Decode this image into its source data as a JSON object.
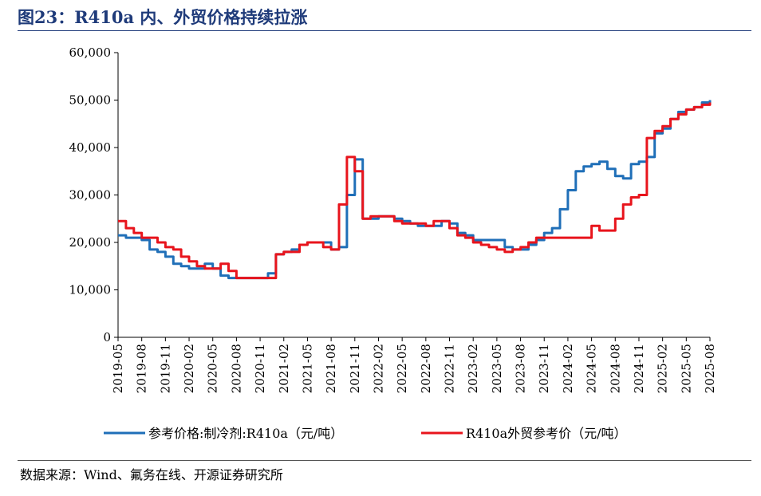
{
  "header": {
    "title": "图23：R410a 内、外贸价格持续拉涨"
  },
  "footer": {
    "source": "数据来源：Wind、氟务在线、开源证券研究所"
  },
  "chart_data": {
    "type": "line",
    "title": "图23：R410a 内、外贸价格持续拉涨",
    "ylim": [
      0,
      60000
    ],
    "yticks": [
      "0",
      "10,000",
      "20,000",
      "30,000",
      "40,000",
      "50,000",
      "60,000"
    ],
    "xticks": [
      "2019-05",
      "2019-08",
      "2019-11",
      "2020-02",
      "2020-05",
      "2020-08",
      "2020-11",
      "2021-02",
      "2021-05",
      "2021-08",
      "2021-11",
      "2022-02",
      "2022-05",
      "2022-08",
      "2022-11",
      "2023-02",
      "2023-05",
      "2023-08",
      "2023-11",
      "2024-02",
      "2024-05",
      "2024-08",
      "2024-11",
      "2025-02",
      "2025-05",
      "2025-08"
    ],
    "legend_position": "bottom",
    "grid": false,
    "series": [
      {
        "name": "参考价格:制冷剂:R410a（元/吨）",
        "color": "#1f6fb8",
        "points": [
          [
            "2019-05",
            21500
          ],
          [
            "2019-06",
            21000
          ],
          [
            "2019-08",
            20500
          ],
          [
            "2019-09",
            18500
          ],
          [
            "2019-10",
            18000
          ],
          [
            "2019-11",
            17000
          ],
          [
            "2019-12",
            15500
          ],
          [
            "2020-01",
            15000
          ],
          [
            "2020-02",
            14500
          ],
          [
            "2020-03",
            14500
          ],
          [
            "2020-04",
            15500
          ],
          [
            "2020-05",
            14500
          ],
          [
            "2020-06",
            13000
          ],
          [
            "2020-07",
            12500
          ],
          [
            "2020-08",
            12500
          ],
          [
            "2020-09",
            12500
          ],
          [
            "2020-10",
            12500
          ],
          [
            "2020-11",
            12500
          ],
          [
            "2020-12",
            13500
          ],
          [
            "2021-01",
            17500
          ],
          [
            "2021-02",
            18000
          ],
          [
            "2021-03",
            18500
          ],
          [
            "2021-04",
            19500
          ],
          [
            "2021-05",
            20000
          ],
          [
            "2021-06",
            20000
          ],
          [
            "2021-07",
            20000
          ],
          [
            "2021-08",
            18500
          ],
          [
            "2021-09",
            19000
          ],
          [
            "2021-10",
            30000
          ],
          [
            "2021-11",
            37500
          ],
          [
            "2021-12",
            25000
          ],
          [
            "2022-01",
            25000
          ],
          [
            "2022-02",
            25500
          ],
          [
            "2022-03",
            25500
          ],
          [
            "2022-04",
            25000
          ],
          [
            "2022-05",
            24500
          ],
          [
            "2022-06",
            24000
          ],
          [
            "2022-07",
            23500
          ],
          [
            "2022-08",
            23500
          ],
          [
            "2022-09",
            23500
          ],
          [
            "2022-10",
            24500
          ],
          [
            "2022-11",
            24000
          ],
          [
            "2022-12",
            22000
          ],
          [
            "2023-01",
            21500
          ],
          [
            "2023-02",
            20500
          ],
          [
            "2023-03",
            20500
          ],
          [
            "2023-04",
            20500
          ],
          [
            "2023-05",
            20500
          ],
          [
            "2023-06",
            19000
          ],
          [
            "2023-07",
            18500
          ],
          [
            "2023-08",
            18500
          ],
          [
            "2023-09",
            19500
          ],
          [
            "2023-10",
            20500
          ],
          [
            "2023-11",
            22000
          ],
          [
            "2023-12",
            23000
          ],
          [
            "2024-01",
            27000
          ],
          [
            "2024-02",
            31000
          ],
          [
            "2024-03",
            35000
          ],
          [
            "2024-04",
            36000
          ],
          [
            "2024-05",
            36500
          ],
          [
            "2024-06",
            37000
          ],
          [
            "2024-07",
            35500
          ],
          [
            "2024-08",
            34000
          ],
          [
            "2024-09",
            33500
          ],
          [
            "2024-10",
            36500
          ],
          [
            "2024-11",
            37000
          ],
          [
            "2024-12",
            38000
          ],
          [
            "2025-01",
            43000
          ],
          [
            "2025-02",
            44000
          ],
          [
            "2025-03",
            46000
          ],
          [
            "2025-04",
            47500
          ],
          [
            "2025-05",
            48000
          ],
          [
            "2025-06",
            48500
          ],
          [
            "2025-07",
            49500
          ],
          [
            "2025-08",
            50000
          ]
        ]
      },
      {
        "name": "R410a外贸参考价（元/吨）",
        "color": "#e8141c",
        "points": [
          [
            "2019-05",
            24500
          ],
          [
            "2019-06",
            23000
          ],
          [
            "2019-07",
            22000
          ],
          [
            "2019-08",
            21000
          ],
          [
            "2019-09",
            21000
          ],
          [
            "2019-10",
            20000
          ],
          [
            "2019-11",
            19000
          ],
          [
            "2019-12",
            18500
          ],
          [
            "2020-01",
            17000
          ],
          [
            "2020-02",
            16000
          ],
          [
            "2020-03",
            15000
          ],
          [
            "2020-04",
            14500
          ],
          [
            "2020-05",
            14500
          ],
          [
            "2020-06",
            15500
          ],
          [
            "2020-07",
            14000
          ],
          [
            "2020-08",
            12500
          ],
          [
            "2020-09",
            12500
          ],
          [
            "2020-10",
            12500
          ],
          [
            "2020-11",
            12500
          ],
          [
            "2020-12",
            12500
          ],
          [
            "2021-01",
            17500
          ],
          [
            "2021-02",
            18000
          ],
          [
            "2021-03",
            18000
          ],
          [
            "2021-04",
            19500
          ],
          [
            "2021-05",
            20000
          ],
          [
            "2021-06",
            20000
          ],
          [
            "2021-07",
            19000
          ],
          [
            "2021-08",
            18500
          ],
          [
            "2021-09",
            28000
          ],
          [
            "2021-10",
            38000
          ],
          [
            "2021-11",
            35000
          ],
          [
            "2021-12",
            25000
          ],
          [
            "2022-01",
            25500
          ],
          [
            "2022-02",
            25500
          ],
          [
            "2022-03",
            25500
          ],
          [
            "2022-04",
            24500
          ],
          [
            "2022-05",
            24000
          ],
          [
            "2022-06",
            24000
          ],
          [
            "2022-07",
            24000
          ],
          [
            "2022-08",
            23500
          ],
          [
            "2022-09",
            24500
          ],
          [
            "2022-10",
            24500
          ],
          [
            "2022-11",
            23000
          ],
          [
            "2022-12",
            21500
          ],
          [
            "2023-01",
            21000
          ],
          [
            "2023-02",
            20000
          ],
          [
            "2023-03",
            19500
          ],
          [
            "2023-04",
            19000
          ],
          [
            "2023-05",
            18500
          ],
          [
            "2023-06",
            18000
          ],
          [
            "2023-07",
            18500
          ],
          [
            "2023-08",
            19000
          ],
          [
            "2023-09",
            20000
          ],
          [
            "2023-10",
            21000
          ],
          [
            "2023-11",
            21000
          ],
          [
            "2023-12",
            21000
          ],
          [
            "2024-01",
            21000
          ],
          [
            "2024-02",
            21000
          ],
          [
            "2024-03",
            21000
          ],
          [
            "2024-04",
            21000
          ],
          [
            "2024-05",
            23500
          ],
          [
            "2024-06",
            22500
          ],
          [
            "2024-07",
            22500
          ],
          [
            "2024-08",
            25000
          ],
          [
            "2024-09",
            28000
          ],
          [
            "2024-10",
            29500
          ],
          [
            "2024-11",
            30000
          ],
          [
            "2024-12",
            42000
          ],
          [
            "2025-01",
            43500
          ],
          [
            "2025-02",
            44500
          ],
          [
            "2025-03",
            46000
          ],
          [
            "2025-04",
            47000
          ],
          [
            "2025-05",
            48000
          ],
          [
            "2025-06",
            48500
          ],
          [
            "2025-07",
            49000
          ],
          [
            "2025-08",
            49500
          ]
        ]
      }
    ]
  }
}
